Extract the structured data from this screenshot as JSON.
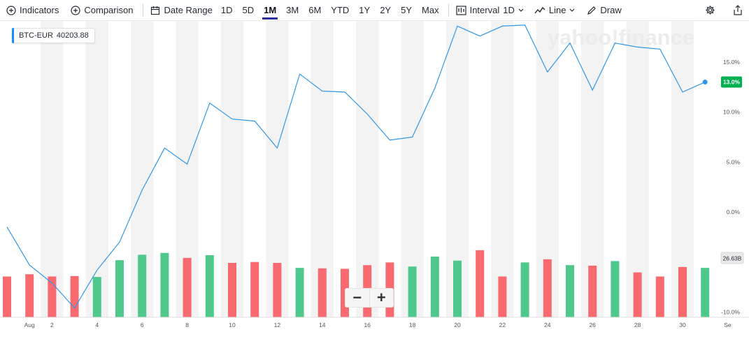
{
  "toolbar": {
    "indicators_label": "Indicators",
    "comparison_label": "Comparison",
    "date_range_label": "Date Range",
    "ranges": [
      "1D",
      "5D",
      "1M",
      "3M",
      "6M",
      "YTD",
      "1Y",
      "2Y",
      "5Y",
      "Max"
    ],
    "active_range": "1M",
    "interval_label": "Interval",
    "interval_value": "1D",
    "chart_type_label": "Line",
    "draw_label": "Draw",
    "icons": {
      "indicators": "plus-circle-icon",
      "comparison": "plus-circle-icon",
      "date_range": "calendar-icon",
      "interval": "candles-icon",
      "chart_type": "line-chart-icon",
      "draw": "pencil-icon",
      "settings": "gear-icon",
      "share": "share-icon"
    }
  },
  "ticker": {
    "symbol": "BTC-EUR",
    "price": "40203.88"
  },
  "watermark": "yahoo!finance",
  "badges": {
    "last_change": "13.0%",
    "volume": "26.63B"
  },
  "colors": {
    "line": "#2f97e8",
    "up_volume": "#4fc88b",
    "down_volume": "#f86a6f",
    "last_badge": "#00b050",
    "band": "#f3f3f3"
  },
  "chart_data": {
    "type": "line",
    "series": [
      {
        "values": [
          -1.5,
          -5.3,
          -7.1,
          -9.6,
          -5.8,
          -3.0,
          2.2,
          6.4,
          4.8,
          10.9,
          9.3,
          9.1,
          6.4,
          13.8,
          12.1,
          12.0,
          9.8,
          7.2,
          7.5,
          12.4,
          18.6,
          17.6,
          18.6,
          18.7,
          14.0,
          16.9,
          12.2,
          16.9,
          16.5,
          16.3,
          12.0,
          13.0
        ]
      }
    ],
    "volume": {
      "values": [
        0.9,
        0.95,
        0.9,
        0.91,
        0.89,
        1.26,
        1.38,
        1.42,
        1.31,
        1.37,
        1.2,
        1.22,
        1.2,
        1.09,
        1.08,
        1.07,
        1.15,
        1.21,
        1.12,
        1.34,
        1.25,
        1.48,
        0.9,
        1.21,
        1.28,
        1.15,
        1.14,
        1.24,
        0.99,
        0.9,
        1.11,
        1.09
      ],
      "up": [
        false,
        false,
        false,
        false,
        true,
        true,
        true,
        true,
        false,
        true,
        false,
        false,
        false,
        true,
        false,
        false,
        false,
        false,
        true,
        true,
        true,
        false,
        false,
        true,
        false,
        true,
        false,
        true,
        false,
        false,
        false,
        true
      ]
    },
    "x_ticks": [
      "Aug",
      "2",
      "4",
      "6",
      "8",
      "10",
      "12",
      "14",
      "16",
      "18",
      "20",
      "22",
      "24",
      "26",
      "28",
      "30",
      "Se"
    ],
    "y_ticks": [
      "15.0%",
      "10.0%",
      "5.0%",
      "0.0%",
      "-10.0%"
    ],
    "y_tick_values": [
      15,
      10,
      5,
      0,
      -10
    ],
    "ylim": [
      -10,
      20
    ],
    "grid": false
  }
}
